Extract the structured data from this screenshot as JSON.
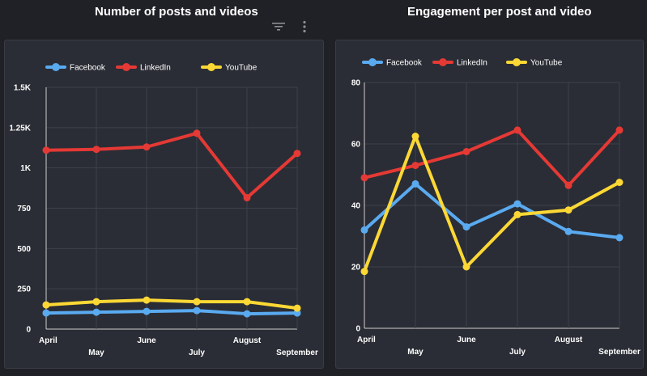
{
  "titles": {
    "left": "Number of posts and videos",
    "right": "Engagement per post and video"
  },
  "icons": {
    "filter": "filter-icon",
    "more": "more-vertical-icon"
  },
  "colors": {
    "Facebook": "#5aaaf0",
    "LinkedIn": "#e53935",
    "YouTube": "#fdd835",
    "grid": "#3e414a",
    "panel": "#2a2d35",
    "background": "#1f2126"
  },
  "chart_data": [
    {
      "type": "line",
      "title": "Number of posts and videos",
      "categories": [
        "April",
        "May",
        "June",
        "July",
        "August",
        "September"
      ],
      "series": [
        {
          "name": "Facebook",
          "values": [
            100,
            105,
            110,
            115,
            95,
            100
          ]
        },
        {
          "name": "LinkedIn",
          "values": [
            1110,
            1115,
            1130,
            1215,
            815,
            1090
          ]
        },
        {
          "name": "YouTube",
          "values": [
            150,
            170,
            180,
            170,
            170,
            130
          ]
        }
      ],
      "ylim": [
        0,
        1500
      ],
      "yticks": [
        0,
        250,
        500,
        750,
        1000,
        1250,
        1500
      ],
      "ytick_labels": [
        "0",
        "250",
        "500",
        "750",
        "1K",
        "1.25K",
        "1.5K"
      ],
      "legend": "top-left",
      "grid": true
    },
    {
      "type": "line",
      "title": "Engagement per post and video",
      "categories": [
        "April",
        "May",
        "June",
        "July",
        "August",
        "September"
      ],
      "series": [
        {
          "name": "Facebook",
          "values": [
            32,
            47,
            33,
            40.5,
            31.5,
            29.5
          ]
        },
        {
          "name": "LinkedIn",
          "values": [
            49,
            53,
            57.5,
            64.5,
            46.5,
            64.5
          ]
        },
        {
          "name": "YouTube",
          "values": [
            18.5,
            62.5,
            20,
            37,
            38.5,
            47.5
          ]
        }
      ],
      "ylim": [
        0,
        80
      ],
      "yticks": [
        0,
        20,
        40,
        60,
        80
      ],
      "ytick_labels": [
        "0",
        "20",
        "40",
        "60",
        "80"
      ],
      "legend": "top-left",
      "grid": true
    }
  ]
}
